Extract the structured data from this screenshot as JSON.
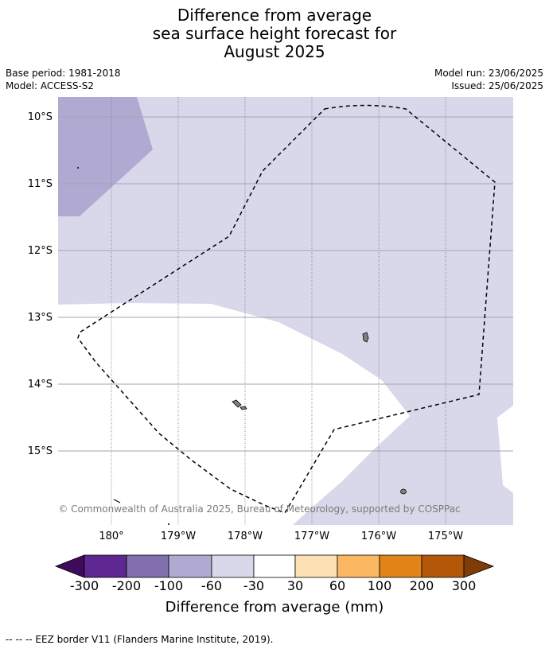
{
  "title_lines": [
    "Difference from average",
    "sea surface height forecast for",
    "August 2025"
  ],
  "meta_left": [
    "Base period: 1981-2018",
    "Model: ACCESS-S2"
  ],
  "meta_right": [
    "Model run: 23/06/2025",
    "Issued: 25/06/2025"
  ],
  "map": {
    "lat_labels": [
      "10°S",
      "11°S",
      "12°S",
      "13°S",
      "14°S",
      "15°S"
    ],
    "lon_labels": [
      "180°",
      "179°W",
      "178°W",
      "177°W",
      "176°W",
      "175°W"
    ],
    "copyright": "© Commonwealth of Australia 2025, Bureau of Meteorology, supported by COSPPac",
    "colors": {
      "band_minus100_minus60": "#b0a9d1",
      "band_minus60_minus30": "#d8d8ea",
      "band_minus30_30": "#ffffff",
      "eez_border": "#000000",
      "island": "#808080"
    }
  },
  "colorbar": {
    "labels": [
      "-300",
      "-200",
      "-100",
      "-60",
      "-30",
      "30",
      "60",
      "100",
      "200",
      "300"
    ],
    "colors": [
      "#3f0a5a",
      "#5e2890",
      "#8170ad",
      "#b0a9d1",
      "#d8d8ea",
      "#ffffff",
      "#fde0b4",
      "#fbb862",
      "#e08417",
      "#b35808",
      "#7f3b08"
    ],
    "title": "Difference from average (mm)"
  },
  "footnote": "--  --  -- EEZ border V11 (Flanders Marine Institute, 2019)."
}
